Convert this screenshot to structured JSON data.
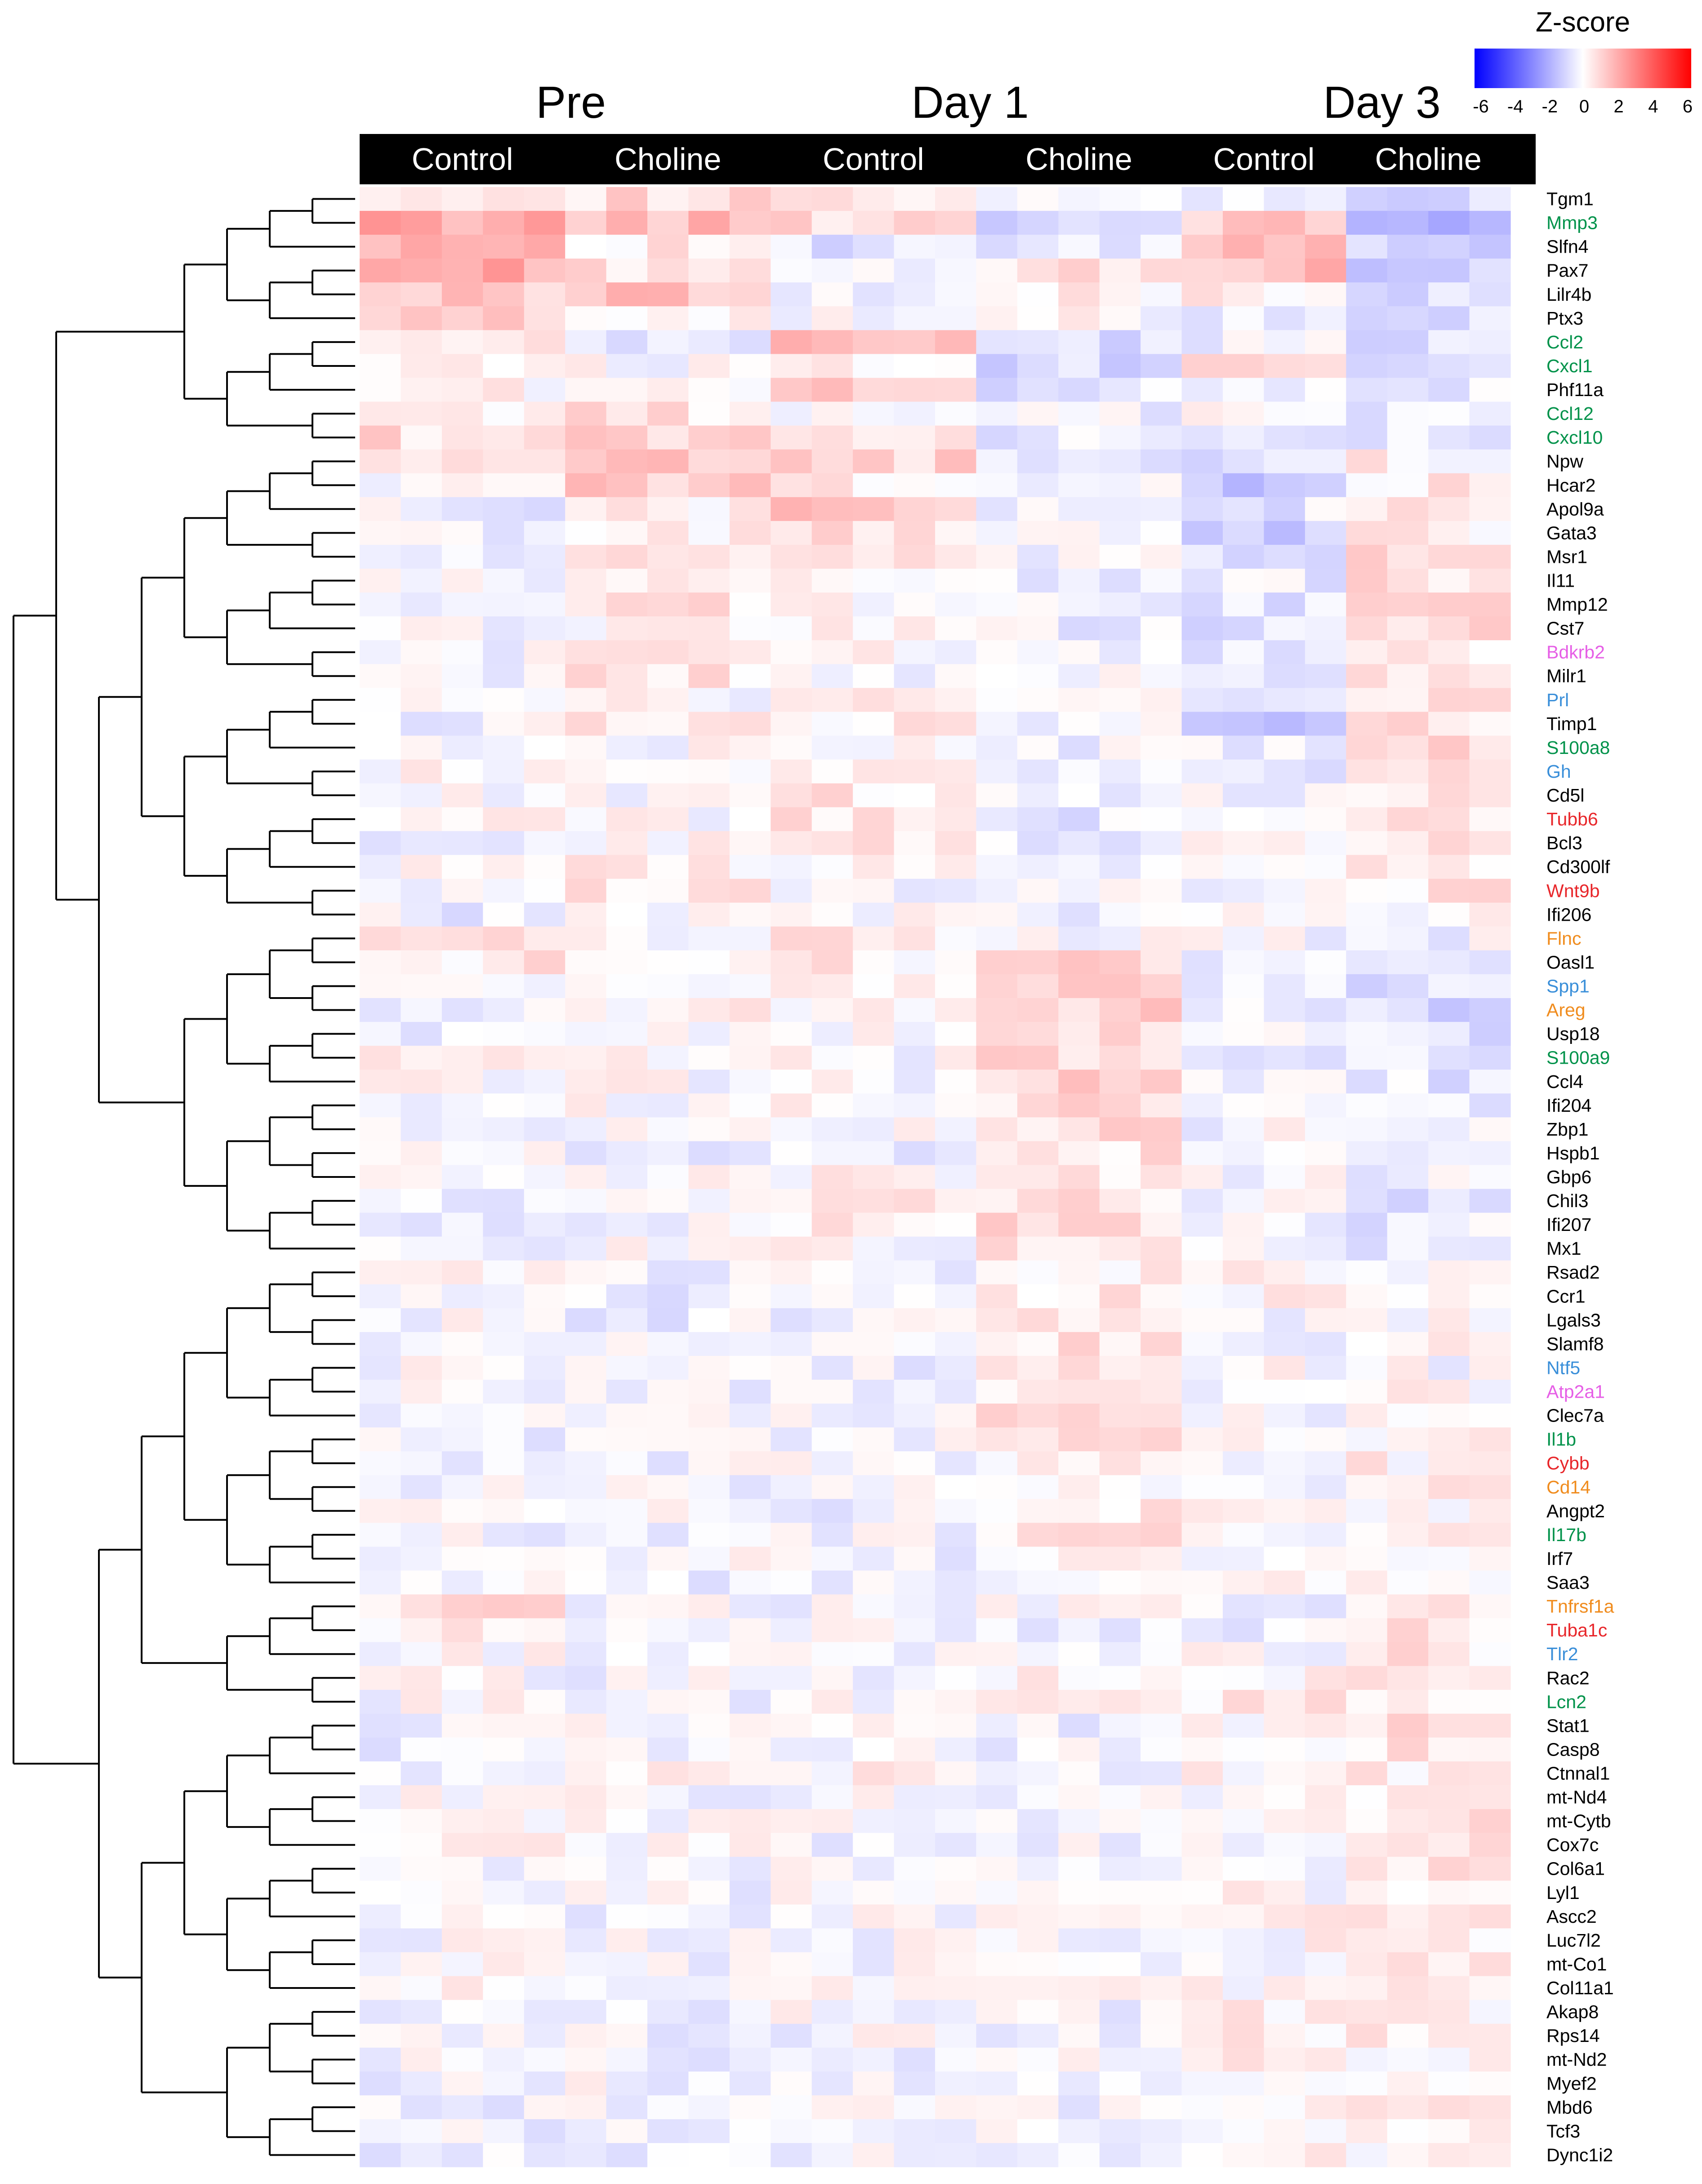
{
  "chart_data": {
    "type": "heatmap",
    "legend": {
      "title": "Z-score",
      "ticks": [
        "-6",
        "-4",
        "-2",
        "0",
        "2",
        "4",
        "6"
      ],
      "range": [
        -6,
        6
      ],
      "colors": {
        "low": "#0000ff",
        "mid": "#ffffff",
        "high": "#ff0000"
      },
      "placement": "top-right"
    },
    "timepoints": [
      "Pre",
      "Day 1",
      "Day 3"
    ],
    "groups": [
      {
        "timepoint": "Pre",
        "label": "Control"
      },
      {
        "timepoint": "Pre",
        "label": "Choline"
      },
      {
        "timepoint": "Day 1",
        "label": "Control"
      },
      {
        "timepoint": "Day 1",
        "label": "Choline"
      },
      {
        "timepoint": "Day 3",
        "label": "Control"
      },
      {
        "timepoint": "Day 3",
        "label": "Choline"
      }
    ],
    "group_sizes": [
      5,
      5,
      5,
      5,
      4,
      4
    ],
    "genes": [
      {
        "name": "Tgm1",
        "color": "#000000"
      },
      {
        "name": "Mmp3",
        "color": "#00924a"
      },
      {
        "name": "Slfn4",
        "color": "#000000"
      },
      {
        "name": "Pax7",
        "color": "#000000"
      },
      {
        "name": "Lilr4b",
        "color": "#000000"
      },
      {
        "name": "Ptx3",
        "color": "#000000"
      },
      {
        "name": "Ccl2",
        "color": "#00924a"
      },
      {
        "name": "Cxcl1",
        "color": "#00924a"
      },
      {
        "name": "Phf11a",
        "color": "#000000"
      },
      {
        "name": "Ccl12",
        "color": "#00924a"
      },
      {
        "name": "Cxcl10",
        "color": "#00924a"
      },
      {
        "name": "Npw",
        "color": "#000000"
      },
      {
        "name": "Hcar2",
        "color": "#000000"
      },
      {
        "name": "Apol9a",
        "color": "#000000"
      },
      {
        "name": "Gata3",
        "color": "#000000"
      },
      {
        "name": "Msr1",
        "color": "#000000"
      },
      {
        "name": "Il11",
        "color": "#000000"
      },
      {
        "name": "Mmp12",
        "color": "#000000"
      },
      {
        "name": "Cst7",
        "color": "#000000"
      },
      {
        "name": "Bdkrb2",
        "color": "#e65fe6"
      },
      {
        "name": "Milr1",
        "color": "#000000"
      },
      {
        "name": "Prl",
        "color": "#3a8fd9"
      },
      {
        "name": "Timp1",
        "color": "#000000"
      },
      {
        "name": "S100a8",
        "color": "#00924a"
      },
      {
        "name": "Gh",
        "color": "#3a8fd9"
      },
      {
        "name": "Cd5l",
        "color": "#000000"
      },
      {
        "name": "Tubb6",
        "color": "#e8262a"
      },
      {
        "name": "Bcl3",
        "color": "#000000"
      },
      {
        "name": "Cd300lf",
        "color": "#000000"
      },
      {
        "name": "Wnt9b",
        "color": "#e8262a"
      },
      {
        "name": "Ifi206",
        "color": "#000000"
      },
      {
        "name": "Flnc",
        "color": "#f08c1e"
      },
      {
        "name": "Oasl1",
        "color": "#000000"
      },
      {
        "name": "Spp1",
        "color": "#3a8fd9"
      },
      {
        "name": "Areg",
        "color": "#f08c1e"
      },
      {
        "name": "Usp18",
        "color": "#000000"
      },
      {
        "name": "S100a9",
        "color": "#00924a"
      },
      {
        "name": "Ccl4",
        "color": "#000000"
      },
      {
        "name": "Ifi204",
        "color": "#000000"
      },
      {
        "name": "Zbp1",
        "color": "#000000"
      },
      {
        "name": "Hspb1",
        "color": "#000000"
      },
      {
        "name": "Gbp6",
        "color": "#000000"
      },
      {
        "name": "Chil3",
        "color": "#000000"
      },
      {
        "name": "Ifi207",
        "color": "#000000"
      },
      {
        "name": "Mx1",
        "color": "#000000"
      },
      {
        "name": "Rsad2",
        "color": "#000000"
      },
      {
        "name": "Ccr1",
        "color": "#000000"
      },
      {
        "name": "Lgals3",
        "color": "#000000"
      },
      {
        "name": "Slamf8",
        "color": "#000000"
      },
      {
        "name": "Ntf5",
        "color": "#3a8fd9"
      },
      {
        "name": "Atp2a1",
        "color": "#e65fe6"
      },
      {
        "name": "Clec7a",
        "color": "#000000"
      },
      {
        "name": "Il1b",
        "color": "#00924a"
      },
      {
        "name": "Cybb",
        "color": "#e8262a"
      },
      {
        "name": "Cd14",
        "color": "#f08c1e"
      },
      {
        "name": "Angpt2",
        "color": "#000000"
      },
      {
        "name": "Il17b",
        "color": "#00924a"
      },
      {
        "name": "Irf7",
        "color": "#000000"
      },
      {
        "name": "Saa3",
        "color": "#000000"
      },
      {
        "name": "Tnfrsf1a",
        "color": "#f08c1e"
      },
      {
        "name": "Tuba1c",
        "color": "#e8262a"
      },
      {
        "name": "Tlr2",
        "color": "#3a8fd9"
      },
      {
        "name": "Rac2",
        "color": "#000000"
      },
      {
        "name": "Lcn2",
        "color": "#00924a"
      },
      {
        "name": "Stat1",
        "color": "#000000"
      },
      {
        "name": "Casp8",
        "color": "#000000"
      },
      {
        "name": "Ctnnal1",
        "color": "#000000"
      },
      {
        "name": "mt-Nd4",
        "color": "#000000"
      },
      {
        "name": "mt-Cytb",
        "color": "#000000"
      },
      {
        "name": "Cox7c",
        "color": "#000000"
      },
      {
        "name": "Col6a1",
        "color": "#000000"
      },
      {
        "name": "Lyl1",
        "color": "#000000"
      },
      {
        "name": "Ascc2",
        "color": "#000000"
      },
      {
        "name": "Luc7l2",
        "color": "#000000"
      },
      {
        "name": "mt-Co1",
        "color": "#000000"
      },
      {
        "name": "Col11a1",
        "color": "#000000"
      },
      {
        "name": "Akap8",
        "color": "#000000"
      },
      {
        "name": "Rps14",
        "color": "#000000"
      },
      {
        "name": "mt-Nd2",
        "color": "#000000"
      },
      {
        "name": "Myef2",
        "color": "#000000"
      },
      {
        "name": "Mbd6",
        "color": "#000000"
      },
      {
        "name": "Tcf3",
        "color": "#000000"
      },
      {
        "name": "Dync1i2",
        "color": "#000000"
      }
    ],
    "group_mean_zscore": [
      [
        1.0,
        0.8,
        0.5,
        -0.5,
        -0.3,
        -1.0
      ],
      [
        2.0,
        1.5,
        1.0,
        -0.8,
        1.2,
        -1.8
      ],
      [
        2.0,
        0.5,
        -0.8,
        -0.6,
        1.5,
        -1.2
      ],
      [
        2.0,
        0.8,
        -0.5,
        0.6,
        1.5,
        -1.0
      ],
      [
        1.2,
        1.5,
        -0.3,
        0.2,
        0.5,
        -0.9
      ],
      [
        1.0,
        0.5,
        -0.2,
        0.0,
        -0.2,
        -0.6
      ],
      [
        0.2,
        -0.6,
        1.6,
        -0.8,
        -0.3,
        -0.6
      ],
      [
        0.5,
        0.0,
        0.5,
        -0.8,
        1.2,
        -0.6
      ],
      [
        0.3,
        0.0,
        1.0,
        -0.5,
        -0.2,
        -0.4
      ],
      [
        0.5,
        0.6,
        0.2,
        -0.3,
        0.0,
        -0.4
      ],
      [
        0.8,
        1.0,
        0.8,
        -0.5,
        -0.2,
        -0.3
      ],
      [
        0.3,
        1.2,
        1.0,
        -0.4,
        -0.8,
        0.3
      ],
      [
        0.0,
        1.2,
        0.5,
        -0.3,
        -1.2,
        0.4
      ],
      [
        -0.3,
        0.3,
        1.4,
        -0.4,
        -0.5,
        0.5
      ],
      [
        -0.2,
        0.2,
        0.8,
        -0.3,
        -1.0,
        0.4
      ],
      [
        -0.3,
        0.5,
        0.3,
        -0.3,
        -0.6,
        0.8
      ],
      [
        -0.2,
        0.4,
        0.2,
        -0.3,
        -0.4,
        0.7
      ],
      [
        -0.2,
        0.5,
        0.2,
        -0.3,
        -0.5,
        0.6
      ],
      [
        -0.2,
        0.3,
        0.3,
        -0.3,
        -0.6,
        0.7
      ],
      [
        -0.1,
        0.2,
        0.2,
        -0.2,
        -0.5,
        0.6
      ],
      [
        -0.2,
        0.5,
        0.0,
        -0.2,
        -0.5,
        0.8
      ],
      [
        -0.1,
        0.1,
        0.3,
        -0.2,
        -0.6,
        0.6
      ],
      [
        -0.2,
        0.6,
        0.5,
        -0.3,
        -1.0,
        0.5
      ],
      [
        0.1,
        0.0,
        0.3,
        -0.3,
        -0.5,
        0.7
      ],
      [
        0.1,
        -0.1,
        0.4,
        -0.2,
        -0.6,
        0.5
      ],
      [
        0.0,
        0.0,
        0.5,
        -0.3,
        -0.2,
        0.7
      ],
      [
        0.0,
        0.1,
        0.5,
        -0.4,
        -0.2,
        0.6
      ],
      [
        -0.1,
        0.1,
        0.6,
        -0.5,
        0.0,
        0.6
      ],
      [
        0.0,
        0.3,
        0.2,
        -0.3,
        -0.2,
        0.5
      ],
      [
        -0.1,
        0.4,
        0.0,
        -0.2,
        -0.2,
        0.5
      ],
      [
        -0.3,
        0.2,
        0.1,
        -0.2,
        -0.1,
        0.3
      ],
      [
        0.6,
        -0.1,
        0.5,
        -0.1,
        -0.1,
        -0.2
      ],
      [
        0.5,
        0.0,
        0.4,
        0.8,
        -0.1,
        -0.5
      ],
      [
        0.3,
        0.0,
        0.2,
        0.9,
        -0.2,
        -0.8
      ],
      [
        -0.3,
        0.2,
        0.0,
        1.0,
        -0.3,
        -0.8
      ],
      [
        -0.3,
        0.1,
        -0.1,
        1.0,
        -0.3,
        -0.8
      ],
      [
        0.1,
        0.0,
        0.0,
        1.0,
        -0.2,
        -0.7
      ],
      [
        0.0,
        0.0,
        0.0,
        0.9,
        -0.2,
        -0.6
      ],
      [
        -0.2,
        0.0,
        0.0,
        0.8,
        -0.2,
        -0.5
      ],
      [
        -0.2,
        -0.1,
        -0.1,
        0.8,
        -0.1,
        -0.4
      ],
      [
        0.0,
        -0.2,
        -0.2,
        0.6,
        -0.1,
        -0.4
      ],
      [
        -0.2,
        -0.1,
        0.2,
        0.7,
        -0.1,
        -0.4
      ],
      [
        -0.2,
        -0.1,
        0.3,
        0.7,
        -0.1,
        -0.5
      ],
      [
        -0.2,
        -0.1,
        0.3,
        0.7,
        -0.2,
        -0.4
      ],
      [
        -0.2,
        -0.1,
        0.1,
        0.6,
        -0.2,
        -0.3
      ],
      [
        0.0,
        -0.3,
        -0.3,
        0.4,
        0.2,
        0.0
      ],
      [
        -0.1,
        -0.3,
        -0.4,
        0.4,
        0.2,
        0.2
      ],
      [
        -0.1,
        -0.3,
        -0.2,
        0.6,
        0.0,
        0.0
      ],
      [
        -0.1,
        -0.3,
        -0.2,
        0.7,
        0.0,
        0.1
      ],
      [
        -0.1,
        -0.2,
        -0.2,
        0.6,
        0.0,
        0.0
      ],
      [
        -0.1,
        -0.2,
        -0.2,
        0.7,
        0.0,
        0.1
      ],
      [
        -0.1,
        -0.2,
        -0.2,
        0.8,
        0.0,
        0.1
      ],
      [
        -0.2,
        -0.2,
        -0.1,
        0.5,
        0.0,
        0.1
      ],
      [
        -0.2,
        -0.2,
        -0.1,
        0.3,
        0.0,
        0.3
      ],
      [
        -0.1,
        -0.2,
        -0.1,
        0.3,
        0.0,
        0.3
      ],
      [
        -0.1,
        -0.1,
        -0.2,
        0.5,
        0.0,
        0.2
      ],
      [
        -0.1,
        -0.1,
        -0.2,
        0.5,
        0.0,
        0.2
      ],
      [
        -0.1,
        -0.1,
        -0.2,
        0.4,
        -0.1,
        0.2
      ],
      [
        -0.1,
        -0.2,
        -0.2,
        0.2,
        0.0,
        0.2
      ],
      [
        0.6,
        0.0,
        -0.2,
        -0.1,
        -0.2,
        0.6
      ],
      [
        0.3,
        -0.1,
        -0.1,
        -0.2,
        -0.2,
        0.6
      ],
      [
        0.1,
        -0.2,
        -0.2,
        -0.1,
        -0.1,
        0.5
      ],
      [
        0.0,
        -0.1,
        -0.1,
        0.1,
        0.2,
        0.4
      ],
      [
        0.0,
        -0.1,
        -0.1,
        0.1,
        0.4,
        0.4
      ],
      [
        -0.2,
        0.2,
        -0.2,
        -0.2,
        0.0,
        0.6
      ],
      [
        -0.3,
        -0.2,
        -0.1,
        -0.2,
        0.1,
        0.5
      ],
      [
        -0.1,
        0.1,
        0.2,
        -0.1,
        0.1,
        0.5
      ],
      [
        -0.1,
        -0.1,
        -0.1,
        -0.1,
        0.2,
        0.5
      ],
      [
        0.1,
        -0.1,
        -0.1,
        -0.1,
        0.2,
        0.6
      ],
      [
        0.2,
        -0.1,
        -0.1,
        -0.1,
        0.1,
        0.6
      ],
      [
        0.0,
        -0.1,
        -0.1,
        -0.1,
        0.1,
        0.5
      ],
      [
        0.0,
        -0.1,
        -0.1,
        -0.1,
        0.1,
        0.5
      ],
      [
        0.0,
        -0.1,
        -0.1,
        0.1,
        0.1,
        0.5
      ],
      [
        0.0,
        -0.1,
        -0.1,
        0.0,
        0.1,
        0.5
      ],
      [
        0.0,
        -0.1,
        -0.1,
        0.0,
        0.1,
        0.6
      ],
      [
        0.1,
        -0.1,
        -0.1,
        -0.1,
        0.1,
        0.6
      ],
      [
        -0.2,
        -0.2,
        -0.1,
        -0.2,
        0.4,
        0.3
      ],
      [
        -0.1,
        -0.2,
        -0.1,
        -0.2,
        0.3,
        0.3
      ],
      [
        -0.2,
        -0.2,
        -0.2,
        -0.1,
        0.3,
        0.2
      ],
      [
        -0.2,
        -0.1,
        -0.1,
        -0.1,
        0.3,
        0.2
      ],
      [
        -0.2,
        -0.1,
        -0.1,
        -0.1,
        0.3,
        0.2
      ],
      [
        -0.2,
        -0.1,
        -0.1,
        -0.1,
        0.4,
        0.2
      ],
      [
        -0.3,
        -0.2,
        -0.1,
        -0.1,
        0.4,
        0.2
      ]
    ],
    "clusters": [
      {
        "range": [
          0,
          10
        ]
      },
      {
        "range": [
          11,
          30
        ]
      },
      {
        "range": [
          31,
          44
        ]
      },
      {
        "range": [
          45,
          58
        ]
      },
      {
        "range": [
          59,
          63
        ]
      },
      {
        "range": [
          64,
          75
        ]
      },
      {
        "range": [
          76,
          82
        ]
      }
    ],
    "xlabel": "",
    "ylabel": ""
  }
}
